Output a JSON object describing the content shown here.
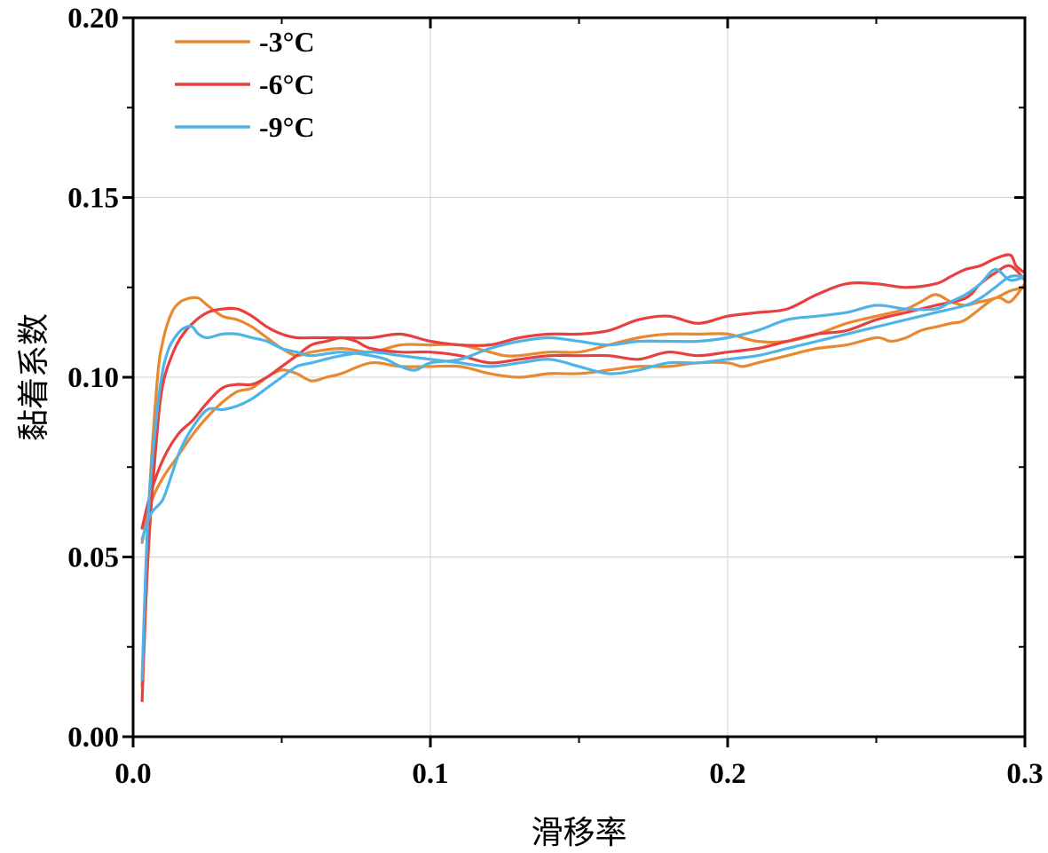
{
  "chart_data": {
    "type": "line",
    "xlabel": "滑移率",
    "ylabel": "黏着系数",
    "xlim": [
      0,
      0.3
    ],
    "ylim": [
      0,
      0.2
    ],
    "xticks": [
      0.0,
      0.1,
      0.2,
      0.3
    ],
    "xtick_labels": [
      "0.0",
      "0.1",
      "0.2",
      "0.3"
    ],
    "yticks": [
      0.0,
      0.05,
      0.1,
      0.15,
      0.2
    ],
    "ytick_labels": [
      "0.00",
      "0.05",
      "0.10",
      "0.15",
      "0.20"
    ],
    "grid": true,
    "legend_position": "top-left",
    "series": [
      {
        "name": "-3°C",
        "color": "#E8892F",
        "curves": [
          {
            "x": [
              0.003,
              0.005,
              0.008,
              0.01,
              0.013,
              0.016,
              0.019,
              0.022,
              0.025,
              0.03,
              0.035,
              0.04,
              0.045,
              0.05,
              0.055,
              0.06,
              0.07,
              0.08,
              0.09,
              0.1,
              0.11,
              0.12,
              0.125,
              0.13,
              0.14,
              0.15,
              0.16,
              0.17,
              0.18,
              0.19,
              0.2,
              0.21,
              0.22,
              0.23,
              0.24,
              0.25,
              0.26,
              0.265,
              0.27,
              0.275,
              0.28,
              0.285,
              0.29,
              0.295,
              0.3
            ],
            "y": [
              0.014,
              0.06,
              0.098,
              0.11,
              0.118,
              0.121,
              0.122,
              0.122,
              0.12,
              0.117,
              0.116,
              0.114,
              0.111,
              0.108,
              0.106,
              0.107,
              0.108,
              0.107,
              0.109,
              0.109,
              0.109,
              0.107,
              0.106,
              0.106,
              0.107,
              0.107,
              0.109,
              0.111,
              0.112,
              0.112,
              0.112,
              0.11,
              0.11,
              0.112,
              0.115,
              0.117,
              0.119,
              0.121,
              0.123,
              0.121,
              0.12,
              0.121,
              0.122,
              0.124,
              0.125
            ]
          },
          {
            "x": [
              0.003,
              0.006,
              0.01,
              0.015,
              0.02,
              0.025,
              0.03,
              0.035,
              0.04,
              0.045,
              0.05,
              0.055,
              0.06,
              0.065,
              0.07,
              0.08,
              0.09,
              0.1,
              0.11,
              0.12,
              0.13,
              0.14,
              0.15,
              0.16,
              0.17,
              0.18,
              0.19,
              0.2,
              0.205,
              0.21,
              0.22,
              0.23,
              0.24,
              0.25,
              0.255,
              0.26,
              0.265,
              0.27,
              0.275,
              0.28,
              0.29,
              0.295,
              0.3
            ],
            "y": [
              0.054,
              0.065,
              0.072,
              0.078,
              0.084,
              0.089,
              0.093,
              0.096,
              0.097,
              0.1,
              0.102,
              0.101,
              0.099,
              0.1,
              0.101,
              0.104,
              0.103,
              0.103,
              0.103,
              0.101,
              0.1,
              0.101,
              0.101,
              0.102,
              0.103,
              0.103,
              0.104,
              0.104,
              0.103,
              0.104,
              0.106,
              0.108,
              0.109,
              0.111,
              0.11,
              0.111,
              0.113,
              0.114,
              0.115,
              0.116,
              0.122,
              0.121,
              0.126
            ]
          }
        ]
      },
      {
        "name": "-6°C",
        "color": "#E8403F",
        "curves": [
          {
            "x": [
              0.003,
              0.005,
              0.008,
              0.01,
              0.013,
              0.016,
              0.02,
              0.025,
              0.03,
              0.035,
              0.04,
              0.045,
              0.05,
              0.055,
              0.06,
              0.07,
              0.08,
              0.09,
              0.1,
              0.11,
              0.12,
              0.13,
              0.14,
              0.15,
              0.16,
              0.17,
              0.18,
              0.19,
              0.2,
              0.21,
              0.22,
              0.23,
              0.24,
              0.25,
              0.26,
              0.27,
              0.275,
              0.28,
              0.285,
              0.29,
              0.295,
              0.297,
              0.3
            ],
            "y": [
              0.01,
              0.05,
              0.084,
              0.098,
              0.106,
              0.111,
              0.115,
              0.118,
              0.119,
              0.119,
              0.117,
              0.114,
              0.112,
              0.111,
              0.111,
              0.111,
              0.111,
              0.112,
              0.11,
              0.109,
              0.109,
              0.111,
              0.112,
              0.112,
              0.113,
              0.116,
              0.117,
              0.115,
              0.117,
              0.118,
              0.119,
              0.123,
              0.126,
              0.126,
              0.125,
              0.126,
              0.128,
              0.13,
              0.131,
              0.133,
              0.134,
              0.131,
              0.129
            ]
          },
          {
            "x": [
              0.003,
              0.006,
              0.01,
              0.015,
              0.02,
              0.025,
              0.03,
              0.035,
              0.04,
              0.045,
              0.05,
              0.055,
              0.06,
              0.065,
              0.07,
              0.075,
              0.08,
              0.09,
              0.1,
              0.11,
              0.12,
              0.13,
              0.14,
              0.15,
              0.16,
              0.17,
              0.18,
              0.19,
              0.2,
              0.21,
              0.22,
              0.23,
              0.24,
              0.25,
              0.26,
              0.27,
              0.28,
              0.285,
              0.29,
              0.295,
              0.3
            ],
            "y": [
              0.058,
              0.068,
              0.077,
              0.084,
              0.088,
              0.093,
              0.097,
              0.098,
              0.098,
              0.1,
              0.103,
              0.106,
              0.109,
              0.11,
              0.111,
              0.11,
              0.108,
              0.107,
              0.107,
              0.106,
              0.104,
              0.105,
              0.106,
              0.106,
              0.106,
              0.105,
              0.107,
              0.106,
              0.107,
              0.108,
              0.11,
              0.112,
              0.113,
              0.116,
              0.118,
              0.12,
              0.122,
              0.126,
              0.129,
              0.131,
              0.127
            ]
          }
        ]
      },
      {
        "name": "-9°C",
        "color": "#4EB3E6",
        "curves": [
          {
            "x": [
              0.003,
              0.005,
              0.008,
              0.01,
              0.012,
              0.014,
              0.016,
              0.018,
              0.02,
              0.022,
              0.025,
              0.03,
              0.035,
              0.04,
              0.045,
              0.05,
              0.055,
              0.06,
              0.07,
              0.08,
              0.085,
              0.09,
              0.095,
              0.1,
              0.11,
              0.12,
              0.13,
              0.14,
              0.15,
              0.16,
              0.17,
              0.18,
              0.19,
              0.2,
              0.21,
              0.22,
              0.23,
              0.24,
              0.25,
              0.26,
              0.27,
              0.275,
              0.28,
              0.285,
              0.29,
              0.295,
              0.3
            ],
            "y": [
              0.016,
              0.061,
              0.09,
              0.102,
              0.108,
              0.111,
              0.113,
              0.114,
              0.114,
              0.112,
              0.111,
              0.112,
              0.112,
              0.111,
              0.11,
              0.108,
              0.107,
              0.106,
              0.107,
              0.106,
              0.105,
              0.103,
              0.102,
              0.104,
              0.105,
              0.108,
              0.11,
              0.111,
              0.11,
              0.109,
              0.11,
              0.11,
              0.11,
              0.111,
              0.113,
              0.116,
              0.117,
              0.118,
              0.12,
              0.119,
              0.119,
              0.121,
              0.123,
              0.126,
              0.13,
              0.127,
              0.128
            ]
          },
          {
            "x": [
              0.003,
              0.006,
              0.01,
              0.013,
              0.016,
              0.02,
              0.025,
              0.03,
              0.035,
              0.04,
              0.045,
              0.05,
              0.055,
              0.06,
              0.07,
              0.08,
              0.09,
              0.1,
              0.11,
              0.12,
              0.13,
              0.14,
              0.15,
              0.16,
              0.17,
              0.18,
              0.19,
              0.2,
              0.21,
              0.22,
              0.23,
              0.24,
              0.25,
              0.26,
              0.27,
              0.28,
              0.285,
              0.29,
              0.295,
              0.3
            ],
            "y": [
              0.055,
              0.062,
              0.066,
              0.073,
              0.08,
              0.086,
              0.091,
              0.091,
              0.092,
              0.094,
              0.097,
              0.1,
              0.103,
              0.104,
              0.106,
              0.107,
              0.106,
              0.105,
              0.104,
              0.103,
              0.104,
              0.105,
              0.103,
              0.101,
              0.102,
              0.104,
              0.104,
              0.105,
              0.106,
              0.108,
              0.11,
              0.112,
              0.114,
              0.116,
              0.118,
              0.12,
              0.122,
              0.125,
              0.128,
              0.128
            ]
          }
        ]
      }
    ]
  }
}
